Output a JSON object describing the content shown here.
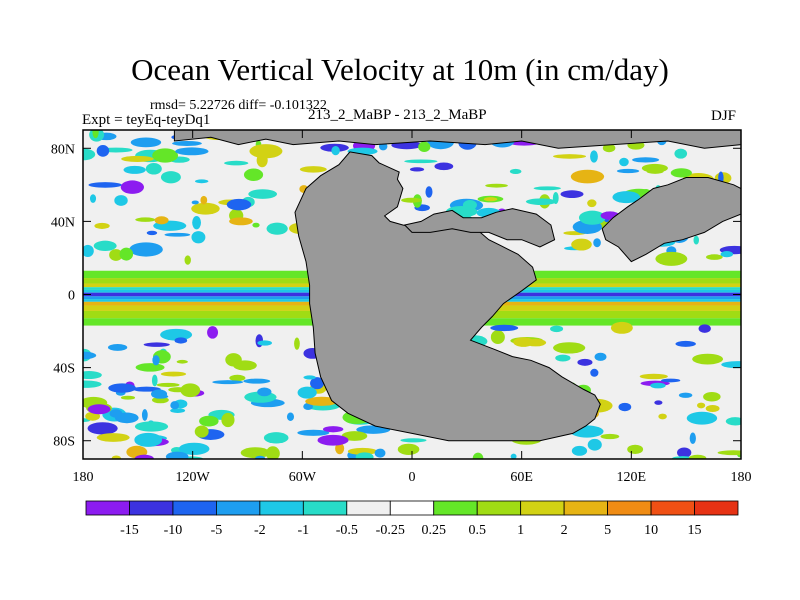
{
  "chart_data": {
    "type": "heatmap",
    "title": "Ocean Vertical Velocity at 10m (in cm/day)",
    "stats_text": "rmsd= 5.22726 diff= -0.101322",
    "left_label": "Expt = teyEq-teyDq1",
    "center_label": "213_2_MaBP - 213_2_MaBP",
    "right_label": "DJF",
    "x_ticks": [
      "180",
      "120W",
      "60W",
      "0",
      "60E",
      "120E",
      "180"
    ],
    "y_ticks": [
      "80N",
      "40N",
      "0",
      "40S",
      "80S"
    ],
    "colorbar_labels": [
      "-15",
      "-10",
      "-5",
      "-2",
      "-1",
      "-0.5",
      "-0.25",
      "0.25",
      "0.5",
      "1",
      "2",
      "5",
      "10",
      "15"
    ],
    "colorbar_colors": [
      "#8c1cf0",
      "#3c32e0",
      "#1e64f0",
      "#1e9ef0",
      "#1ec8e6",
      "#28dcc8",
      "#f0f0f0",
      "#64e628",
      "#a0dc14",
      "#d2d214",
      "#e6b414",
      "#f08c14",
      "#f05014",
      "#e63214"
    ],
    "land_color": "#999999",
    "xlim": [
      -180,
      180
    ],
    "ylim": [
      -90,
      90
    ]
  }
}
